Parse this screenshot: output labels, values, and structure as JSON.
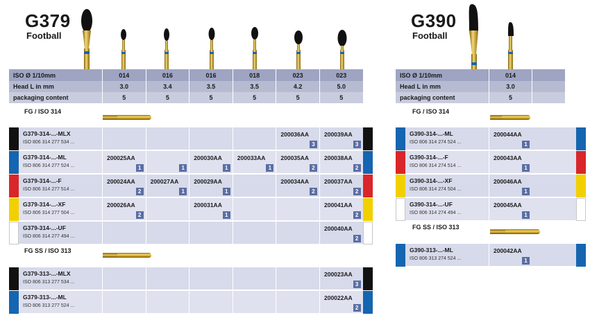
{
  "left": {
    "title": "G379",
    "subtitle": "Football",
    "spec_rows": [
      {
        "label": "ISO Ø 1/10mm",
        "values": [
          "014",
          "016",
          "016",
          "018",
          "023",
          "023"
        ]
      },
      {
        "label": "Head L in mm",
        "values": [
          "3.0",
          "3.4",
          "3.5",
          "3.5",
          "4.2",
          "5.0"
        ]
      },
      {
        "label": "packaging content",
        "values": [
          "5",
          "5",
          "5",
          "5",
          "5",
          "5"
        ]
      }
    ],
    "section_fg": "FG / ISO 314",
    "section_fgss": "FG SS / ISO 313",
    "rows_fg": [
      {
        "band": "#111111",
        "name": "G379-314-...-MLX",
        "iso": "ISO 806 314 277 534 ...",
        "cells": [
          null,
          null,
          null,
          null,
          {
            "code": "200036AA",
            "badge": "3"
          },
          {
            "code": "200039AA",
            "badge": "3"
          }
        ]
      },
      {
        "band": "#1565b0",
        "name": "G379-314-...-ML",
        "iso": "ISO 806 314 277 524 ...",
        "cells": [
          {
            "code": "200025AA",
            "badge": "1"
          },
          {
            "code": "",
            "badge": "1"
          },
          {
            "code": "200030AA",
            "badge": "1"
          },
          {
            "code": "200033AA",
            "badge": "1"
          },
          {
            "code": "200035AA",
            "badge": "2"
          },
          {
            "code": "200038AA",
            "badge": "2"
          }
        ]
      },
      {
        "band": "#d9262b",
        "name": "G379-314-...-F",
        "iso": "ISO 806 314 277 514 ...",
        "cells": [
          {
            "code": "200024AA",
            "badge": "2"
          },
          {
            "code": "200027AA",
            "badge": "1"
          },
          {
            "code": "200029AA",
            "badge": "1"
          },
          null,
          {
            "code": "200034AA",
            "badge": "2"
          },
          {
            "code": "200037AA",
            "badge": "2"
          }
        ]
      },
      {
        "band": "#f2d000",
        "name": "G379-314-...-XF",
        "iso": "ISO 806 314 277 504 ...",
        "cells": [
          {
            "code": "200026AA",
            "badge": "2"
          },
          null,
          {
            "code": "200031AA",
            "badge": "1"
          },
          null,
          null,
          {
            "code": "200041AA",
            "badge": "2"
          }
        ]
      },
      {
        "band": "white",
        "name": "G379-314-...-UF",
        "iso": "ISO 806 314 277 494 ...",
        "cells": [
          null,
          null,
          null,
          null,
          null,
          {
            "code": "200040AA",
            "badge": "2"
          }
        ]
      }
    ],
    "rows_fgss": [
      {
        "band": "#111111",
        "name": "G379-313-...-MLX",
        "iso": "ISO 806 313 277 534 ...",
        "cells": [
          null,
          null,
          null,
          null,
          null,
          {
            "code": "200023AA",
            "badge": "3"
          }
        ]
      },
      {
        "band": "#1565b0",
        "name": "G379-313-...-ML",
        "iso": "ISO 806 313 277 524 ...",
        "cells": [
          null,
          null,
          null,
          null,
          null,
          {
            "code": "200022AA",
            "badge": "2"
          }
        ]
      }
    ]
  },
  "right": {
    "title": "G390",
    "subtitle": "Football",
    "spec_rows": [
      {
        "label": "ISO Ø 1/10mm",
        "values": [
          "014"
        ]
      },
      {
        "label": "Head L in mm",
        "values": [
          "3.0"
        ]
      },
      {
        "label": "packaging content",
        "values": [
          "5"
        ]
      }
    ],
    "section_fg": "FG / ISO 314",
    "section_fgss": "FG SS / ISO 313",
    "rows_fg": [
      {
        "band": "#1565b0",
        "name": "G390-314-...-ML",
        "iso": "ISO 806 314 274 524 ...",
        "cells": [
          {
            "code": "200044AA",
            "badge": "1"
          }
        ]
      },
      {
        "band": "#d9262b",
        "name": "G390-314-...-F",
        "iso": "ISO 806 314 274 514 ...",
        "cells": [
          {
            "code": "200043AA",
            "badge": "1"
          }
        ]
      },
      {
        "band": "#f2d000",
        "name": "G390-314-...-XF",
        "iso": "ISO 806 314 274 504 ...",
        "cells": [
          {
            "code": "200046AA",
            "badge": "1"
          }
        ]
      },
      {
        "band": "white",
        "name": "G390-314-...-UF",
        "iso": "ISO 806 314 274 494 ...",
        "cells": [
          {
            "code": "200045AA",
            "badge": "1"
          }
        ]
      }
    ],
    "rows_fgss": [
      {
        "band": "#1565b0",
        "name": "G390-313-...-ML",
        "iso": "ISO 806 313 274 524 ...",
        "cells": [
          {
            "code": "200042AA",
            "badge": "1"
          }
        ]
      }
    ]
  },
  "icons": {
    "bur_images": "bur-instrument-icon",
    "shank": "shank-icon"
  }
}
